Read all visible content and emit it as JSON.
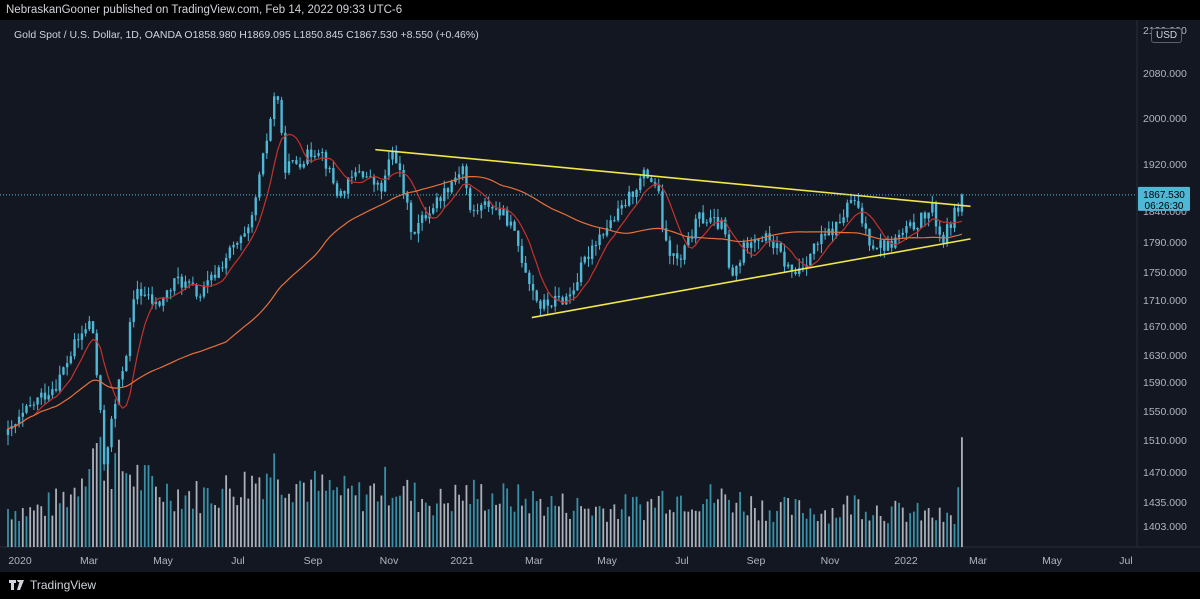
{
  "header": {
    "publisher_text": "NebraskanGooner published on TradingView.com, Feb 14, 2022 09:33 UTC-6"
  },
  "symbol": {
    "name": "Gold Spot / U.S. Dollar, 1D, OANDA",
    "open": "O1858.980",
    "high": "H1869.095",
    "low": "L1850.845",
    "close": "C1867.530",
    "change": "+8.550 (+0.46%)"
  },
  "currency": "USD",
  "footer": {
    "brand": "TradingView"
  },
  "colors": {
    "background": "#131722",
    "candle": "#4fb8d6",
    "volume_up": "#3ea6bc",
    "volume_down": "#c5ccd3",
    "ma_fast": "#c4322b",
    "ma_slow": "#e8703a",
    "trendline": "#f2e64a",
    "price_label_bg": "#4fb8d6"
  },
  "chart_data": {
    "type": "candlestick",
    "x_axis_labels": [
      "2020",
      "Mar",
      "May",
      "Jul",
      "Sep",
      "Nov",
      "2021",
      "Mar",
      "May",
      "Jul",
      "Sep",
      "Nov",
      "2022",
      "Mar",
      "May",
      "Jul"
    ],
    "y_axis_labels": [
      "2120.000",
      "2080.000",
      "2000.000",
      "1920.000",
      "1840.000",
      "1790.000",
      "1750.000",
      "1710.000",
      "1670.000",
      "1630.000",
      "1590.000",
      "1550.000",
      "1510.000",
      "1470.000",
      "1435.000",
      "1403.000"
    ],
    "last_price_label": "1867.530",
    "countdown_label": "06:26:30",
    "price_series": {
      "x": [
        "2020-01-01",
        "2020-01-20",
        "2020-02-10",
        "2020-02-24",
        "2020-03-09",
        "2020-03-19",
        "2020-04-07",
        "2020-04-14",
        "2020-05-01",
        "2020-05-18",
        "2020-06-05",
        "2020-06-26",
        "2020-07-15",
        "2020-07-27",
        "2020-08-06",
        "2020-08-12",
        "2020-08-25",
        "2020-09-10",
        "2020-09-25",
        "2020-10-12",
        "2020-10-30",
        "2020-11-09",
        "2020-11-24",
        "2020-12-15",
        "2021-01-06",
        "2021-01-08",
        "2021-01-25",
        "2021-02-10",
        "2021-03-01",
        "2021-03-08",
        "2021-03-31",
        "2021-04-20",
        "2021-05-10",
        "2021-06-01",
        "2021-06-11",
        "2021-06-17",
        "2021-06-29",
        "2021-07-15",
        "2021-08-04",
        "2021-08-09",
        "2021-08-25",
        "2021-09-10",
        "2021-09-29",
        "2021-10-20",
        "2021-11-05",
        "2021-11-16",
        "2021-12-01",
        "2021-12-15",
        "2022-01-04",
        "2022-01-20",
        "2022-01-28",
        "2022-02-14"
      ],
      "close": [
        1517,
        1557,
        1590,
        1642,
        1680,
        1482,
        1645,
        1728,
        1700,
        1740,
        1716,
        1770,
        1805,
        1940,
        2060,
        1915,
        1925,
        1950,
        1865,
        1910,
        1875,
        1950,
        1805,
        1860,
        1922,
        1835,
        1853,
        1825,
        1730,
        1700,
        1715,
        1790,
        1835,
        1905,
        1880,
        1785,
        1760,
        1830,
        1815,
        1735,
        1800,
        1795,
        1745,
        1790,
        1818,
        1862,
        1790,
        1785,
        1815,
        1842,
        1790,
        1867.53
      ]
    },
    "volume_series": {
      "x": [
        "2020-01-01",
        "2020-01-20",
        "2020-02-10",
        "2020-02-24",
        "2020-03-09",
        "2020-03-19",
        "2020-04-07",
        "2020-05-01",
        "2020-06-05",
        "2020-07-15",
        "2020-08-06",
        "2020-08-12",
        "2020-09-10",
        "2020-10-12",
        "2020-11-09",
        "2020-11-24",
        "2020-12-15",
        "2021-01-08",
        "2021-02-10",
        "2021-03-08",
        "2021-04-20",
        "2021-06-01",
        "2021-06-17",
        "2021-08-09",
        "2021-09-10",
        "2021-11-05",
        "2021-11-16",
        "2021-12-15",
        "2022-01-20",
        "2022-02-08",
        "2022-02-14"
      ],
      "volume": [
        0.3,
        0.28,
        0.35,
        0.45,
        0.8,
        0.7,
        0.6,
        0.45,
        0.4,
        0.5,
        0.65,
        0.55,
        0.45,
        0.4,
        0.5,
        0.4,
        0.35,
        0.42,
        0.38,
        0.35,
        0.3,
        0.32,
        0.4,
        0.38,
        0.3,
        0.28,
        0.35,
        0.28,
        0.25,
        0.2,
        0.95
      ]
    },
    "trendlines": [
      {
        "name": "upper",
        "from": [
          "2020-10-25",
          1945
        ],
        "to": [
          "2022-02-20",
          1848
        ]
      },
      {
        "name": "lower",
        "from": [
          "2021-03-01",
          1683
        ],
        "to": [
          "2022-02-20",
          1795
        ]
      }
    ],
    "ylim": [
      1403,
      2120
    ]
  }
}
